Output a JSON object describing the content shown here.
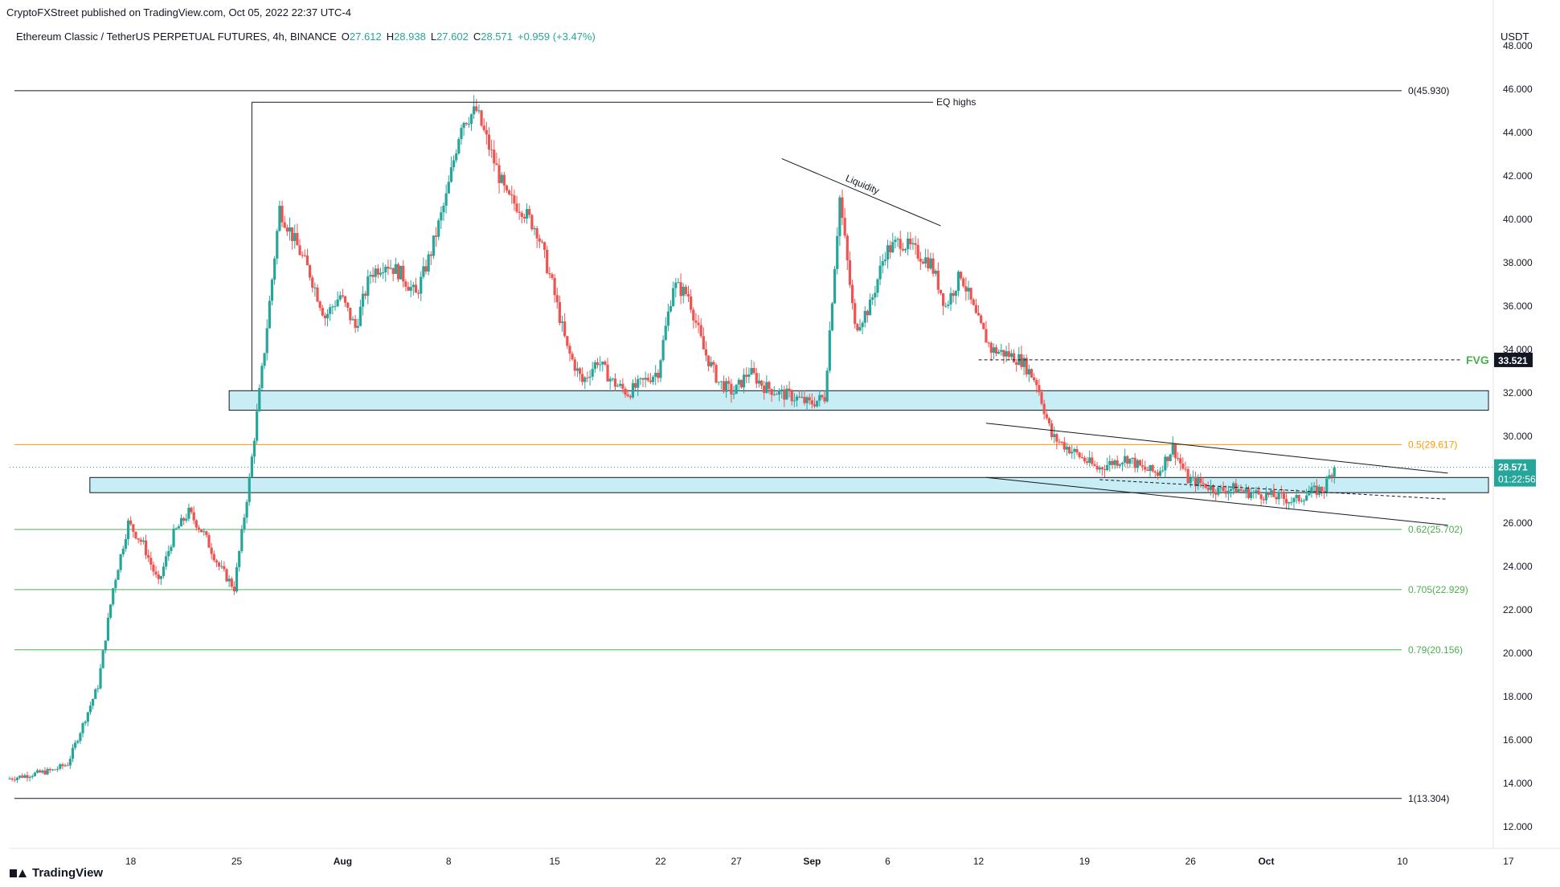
{
  "header": {
    "credit": "CryptoFXStreet published on TradingView.com, Oct 05, 2022 22:37 UTC-4",
    "symbol": "Ethereum Classic / TetherUS PERPETUAL FUTURES, 4h, BINANCE",
    "open_label": "O",
    "open": "27.612",
    "high_label": "H",
    "high": "28.938",
    "low_label": "L",
    "low": "27.602",
    "close_label": "C",
    "close": "28.571",
    "change": "+0.959 (+3.47%)"
  },
  "footer": {
    "brand": "TradingView"
  },
  "colors": {
    "up": "#26a69a",
    "down": "#ef5350",
    "fib_orange": "#ff9800",
    "fib_green": "#4caf50",
    "zone_fill": "#c8edf4",
    "fvg": "#4caf50"
  },
  "chart_data": {
    "type": "candlestick",
    "title": "Ethereum Classic / TetherUS PERPETUAL FUTURES, 4h, BINANCE",
    "currency": "USDT",
    "ylim": [
      11,
      49
    ],
    "y_ticks": [
      "48.000",
      "46.000",
      "44.000",
      "42.000",
      "40.000",
      "38.000",
      "36.000",
      "34.000",
      "32.000",
      "30.000",
      "28.000",
      "26.000",
      "24.000",
      "22.000",
      "20.000",
      "18.000",
      "16.000",
      "14.000",
      "12.000"
    ],
    "x_range_days": [
      0,
      98
    ],
    "x_ticks": [
      {
        "day": 8,
        "label": "18"
      },
      {
        "day": 15,
        "label": "25"
      },
      {
        "day": 22,
        "label": "Aug"
      },
      {
        "day": 29,
        "label": "8"
      },
      {
        "day": 36,
        "label": "15"
      },
      {
        "day": 43,
        "label": "22"
      },
      {
        "day": 48,
        "label": "27"
      },
      {
        "day": 53,
        "label": "Sep"
      },
      {
        "day": 58,
        "label": "6"
      },
      {
        "day": 64,
        "label": "12"
      },
      {
        "day": 71,
        "label": "19"
      },
      {
        "day": 78,
        "label": "26"
      },
      {
        "day": 83,
        "label": "Oct"
      },
      {
        "day": 92,
        "label": "10"
      },
      {
        "day": 99,
        "label": "17"
      }
    ],
    "price_waypoints": [
      [
        0,
        14.2
      ],
      [
        3,
        14.6
      ],
      [
        4,
        14.9
      ],
      [
        6,
        18.5
      ],
      [
        7,
        23.0
      ],
      [
        8,
        26.0
      ],
      [
        9,
        25.0
      ],
      [
        10,
        23.2
      ],
      [
        11,
        25.5
      ],
      [
        12,
        26.5
      ],
      [
        13,
        25.5
      ],
      [
        14,
        24.0
      ],
      [
        15,
        23.0
      ],
      [
        16,
        28.0
      ],
      [
        17,
        34.0
      ],
      [
        18,
        40.5
      ],
      [
        19,
        39.0
      ],
      [
        20,
        37.5
      ],
      [
        21,
        35.5
      ],
      [
        22,
        36.5
      ],
      [
        23,
        35.0
      ],
      [
        24,
        37.5
      ],
      [
        25,
        38.0
      ],
      [
        26,
        37.5
      ],
      [
        27,
        36.5
      ],
      [
        28,
        38.5
      ],
      [
        29,
        41.0
      ],
      [
        30,
        44.5
      ],
      [
        31,
        45.0
      ],
      [
        32,
        43.0
      ],
      [
        33,
        41.0
      ],
      [
        34,
        40.5
      ],
      [
        35,
        39.5
      ],
      [
        36,
        37.0
      ],
      [
        37,
        34.0
      ],
      [
        38,
        32.5
      ],
      [
        39,
        33.5
      ],
      [
        40,
        32.5
      ],
      [
        41,
        32.0
      ],
      [
        42,
        32.5
      ],
      [
        43,
        33.0
      ],
      [
        44,
        37.0
      ],
      [
        45,
        36.5
      ],
      [
        46,
        34.0
      ],
      [
        47,
        32.5
      ],
      [
        48,
        32.0
      ],
      [
        49,
        33.0
      ],
      [
        50,
        32.3
      ],
      [
        51,
        32.0
      ],
      [
        52,
        31.8
      ],
      [
        53,
        31.5
      ],
      [
        54,
        31.8
      ],
      [
        55,
        41.0
      ],
      [
        56,
        35.0
      ],
      [
        57,
        36.0
      ],
      [
        58,
        38.5
      ],
      [
        59,
        39.0
      ],
      [
        60,
        38.5
      ],
      [
        61,
        38.0
      ],
      [
        62,
        36.0
      ],
      [
        63,
        37.5
      ],
      [
        64,
        35.5
      ],
      [
        65,
        34.0
      ],
      [
        66,
        33.8
      ],
      [
        67,
        33.5
      ],
      [
        68,
        32.5
      ],
      [
        69,
        30.0
      ],
      [
        70,
        29.5
      ],
      [
        71,
        29.0
      ],
      [
        72,
        28.5
      ],
      [
        73,
        28.8
      ],
      [
        74,
        29.0
      ],
      [
        75,
        28.5
      ],
      [
        76,
        28.3
      ],
      [
        77,
        29.5
      ],
      [
        78,
        28.0
      ],
      [
        79,
        27.8
      ],
      [
        80,
        27.5
      ],
      [
        81,
        27.6
      ],
      [
        82,
        27.4
      ],
      [
        83,
        27.3
      ],
      [
        84,
        27.2
      ],
      [
        85,
        27.0
      ],
      [
        86,
        27.4
      ],
      [
        87,
        27.6
      ],
      [
        87.6,
        28.57
      ]
    ],
    "fib_levels": [
      {
        "label": "0(45.930)",
        "value": 45.93,
        "color": "#131722"
      },
      {
        "label": "0.5(29.617)",
        "value": 29.617,
        "color": "#ff9800"
      },
      {
        "label": "0.62(25.702)",
        "value": 25.702,
        "color": "#4caf50"
      },
      {
        "label": "0.705(22.929)",
        "value": 22.929,
        "color": "#4caf50"
      },
      {
        "label": "0.79(20.156)",
        "value": 20.156,
        "color": "#4caf50"
      },
      {
        "label": "1(13.304)",
        "value": 13.304,
        "color": "#131722"
      }
    ],
    "zones": [
      {
        "from_day": 14.5,
        "y_low": 31.2,
        "y_high": 32.1
      },
      {
        "from_day": 5.3,
        "y_low": 27.4,
        "y_high": 28.1
      }
    ],
    "annotations": {
      "eq_highs": {
        "label": "EQ highs",
        "value": 45.4,
        "from_day": 16,
        "to_day": 61
      },
      "liquidity": {
        "label": "Liquidity",
        "from": [
          51,
          42.8
        ],
        "to": [
          61.5,
          39.7
        ]
      },
      "fvg": {
        "label": "FVG",
        "price": "33.521",
        "value": 33.521,
        "from_day": 64
      },
      "channel_upper": {
        "from": [
          64.5,
          30.6
        ],
        "to": [
          95,
          28.3
        ]
      },
      "channel_lower": {
        "from": [
          64.5,
          28.1
        ],
        "to": [
          95,
          25.9
        ]
      },
      "channel_mid": {
        "from": [
          72,
          28.0
        ],
        "to": [
          95,
          27.1
        ]
      }
    },
    "last_price": "28.571",
    "last_price_value": 28.571,
    "countdown": "01:22:56"
  }
}
